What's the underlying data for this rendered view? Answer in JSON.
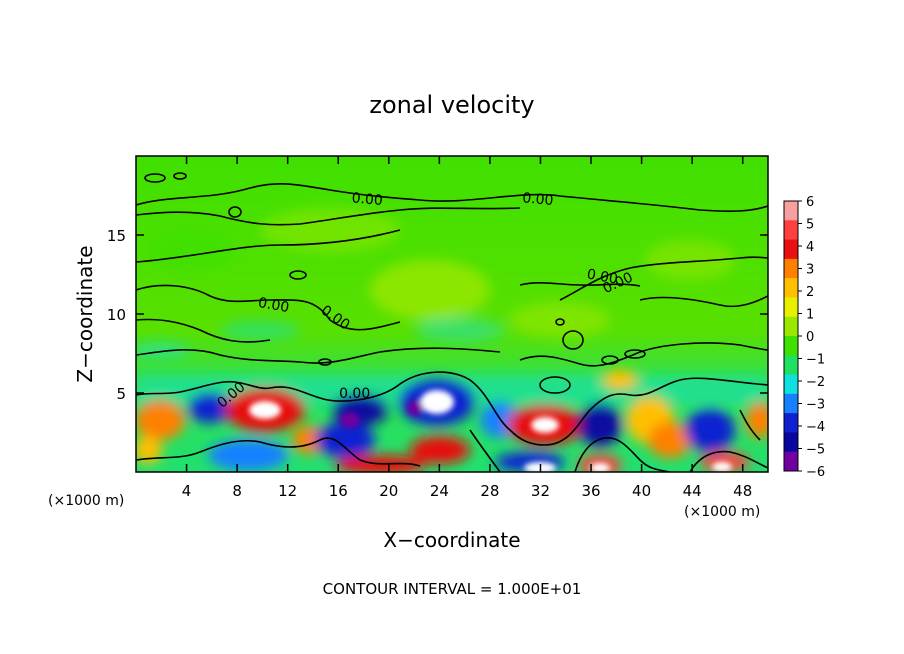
{
  "chart_data": {
    "type": "heatmap",
    "title": "zonal velocity",
    "xlabel": "X−coordinate",
    "ylabel": "Z−coordinate",
    "x_unit_left": "(×1000 m)",
    "x_unit_right": "(×1000 m)",
    "footer": "CONTOUR INTERVAL = 1.000E+01",
    "xlim": [
      0,
      50
    ],
    "ylim": [
      0,
      20
    ],
    "x_ticks": [
      4,
      8,
      12,
      16,
      20,
      24,
      28,
      32,
      36,
      40,
      44,
      48
    ],
    "x_tick_labels": [
      "4",
      "8",
      "12",
      "16",
      "20",
      "24",
      "28",
      "32",
      "36",
      "40",
      "44",
      "48"
    ],
    "y_ticks": [
      5,
      10,
      15
    ],
    "y_tick_labels": [
      "5",
      "10",
      "15"
    ],
    "colorbar": {
      "min": -6,
      "max": 6,
      "labels": [
        "6",
        "5",
        "4",
        "3",
        "2",
        "1",
        "0",
        "−1",
        "−2",
        "−3",
        "−4",
        "−5",
        "−6"
      ],
      "colors": [
        "#f8a0a0",
        "#ff4040",
        "#e81010",
        "#ff8000",
        "#ffc000",
        "#e8f000",
        "#9ae800",
        "#40e000",
        "#20e060",
        "#10e0e0",
        "#1880ff",
        "#1020d0",
        "#0808a0",
        "#7000a0"
      ]
    },
    "contour_labels": [
      {
        "text": "0.00",
        "x": 18.3,
        "y": 17.3
      },
      {
        "text": "0.00",
        "x": 31.8,
        "y": 17.3
      },
      {
        "text": "0.00",
        "x": 36.9,
        "y": 12.4
      },
      {
        "text": "0.00",
        "x": 38.1,
        "y": 12.0
      },
      {
        "text": "0.00",
        "x": 10.9,
        "y": 10.6
      },
      {
        "text": "0.00",
        "x": 15.8,
        "y": 9.8
      },
      {
        "text": "0.00",
        "x": 7.5,
        "y": 4.9
      },
      {
        "text": "0.00",
        "x": 17.3,
        "y": 5.0
      }
    ],
    "grid": false,
    "legend": "right"
  }
}
